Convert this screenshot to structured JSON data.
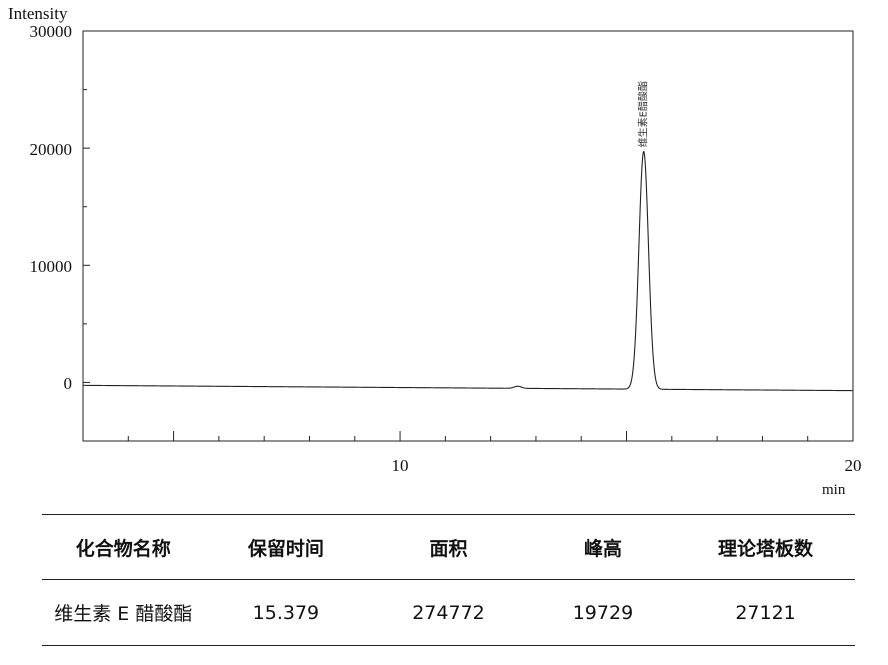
{
  "chart_data": {
    "type": "line",
    "ylabel": "Intensity",
    "xlabel": "min",
    "xlim": [
      3,
      20
    ],
    "ylim": [
      -5000,
      30000
    ],
    "y_ticks": [
      "30000",
      "20000",
      "10000",
      "0"
    ],
    "x_ticks": [
      "10",
      "20"
    ],
    "peaks": [
      {
        "label": "维生素E醋酸酯",
        "x": 15.379,
        "height": 19729
      }
    ],
    "baseline": {
      "start": -250,
      "end": -700
    }
  },
  "table": {
    "headers": [
      "化合物名称",
      "保留时间",
      "面积",
      "峰高",
      "理论塔板数"
    ],
    "rows": [
      [
        "维生素 E 醋酸酯",
        "15.379",
        "274772",
        "19729",
        "27121"
      ]
    ]
  }
}
